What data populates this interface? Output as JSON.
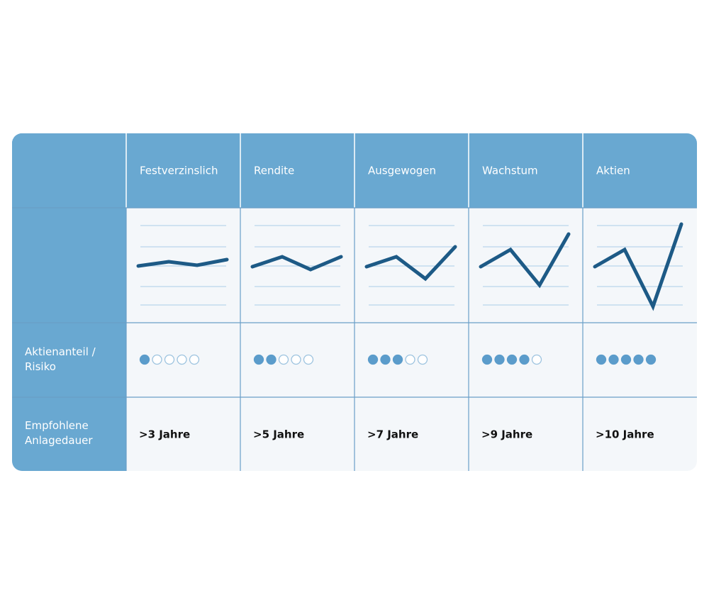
{
  "table": {
    "columns": [
      "Festverzinslich",
      "Rendite",
      "Ausgewogen",
      "Wachstum",
      "Aktien"
    ],
    "risk_label": [
      "Aktienanteil /",
      "Risiko"
    ],
    "risk": [
      1,
      2,
      3,
      4,
      5
    ],
    "risk_range": [
      0,
      5
    ],
    "duration_label": [
      "Empfohlene",
      "Anlagedauer"
    ],
    "durations": [
      ">3 Jahre",
      ">5 Jahre",
      ">7 Jahre",
      ">9 Jahre",
      ">10 Jahre"
    ]
  }
}
